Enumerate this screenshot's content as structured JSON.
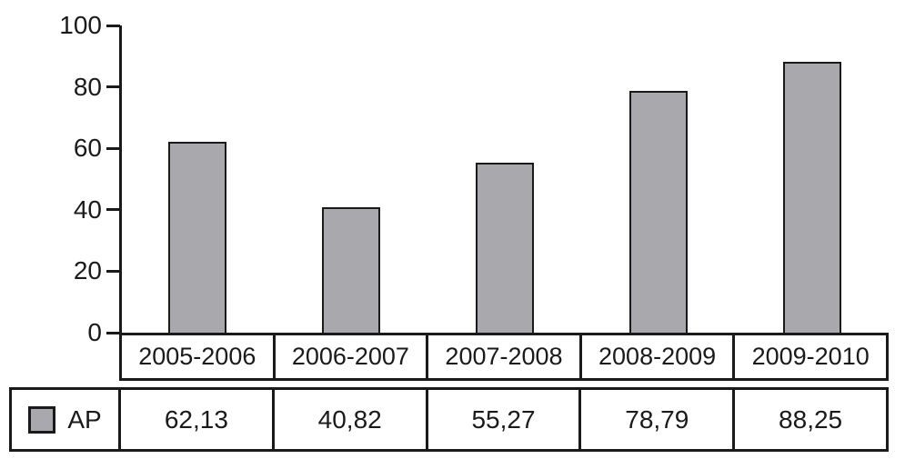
{
  "chart": {
    "background": "#ffffff",
    "bar_fill": "#a9a9ad",
    "bar_border": "#1a1a1a",
    "axis_color": "#1a1a1a",
    "text_color": "#1a1a1a"
  },
  "chart_data": {
    "type": "bar",
    "title": "",
    "xlabel": "",
    "ylabel": "",
    "categories": [
      "2005-2006",
      "2006-2007",
      "2007-2008",
      "2008-2009",
      "2009-2010"
    ],
    "series": [
      {
        "name": "AP",
        "values": [
          62.13,
          40.82,
          55.27,
          78.79,
          88.25
        ]
      }
    ],
    "value_labels": [
      "62,13",
      "40,82",
      "55,27",
      "78,79",
      "88,25"
    ],
    "ylim": [
      0,
      100
    ],
    "yticks": [
      0,
      20,
      40,
      60,
      80,
      100
    ],
    "grid": false,
    "legend_position": "data-table-left",
    "data_table_shown": true
  },
  "legend": {
    "label": "AP",
    "swatch_color": "#a9a9ad"
  }
}
